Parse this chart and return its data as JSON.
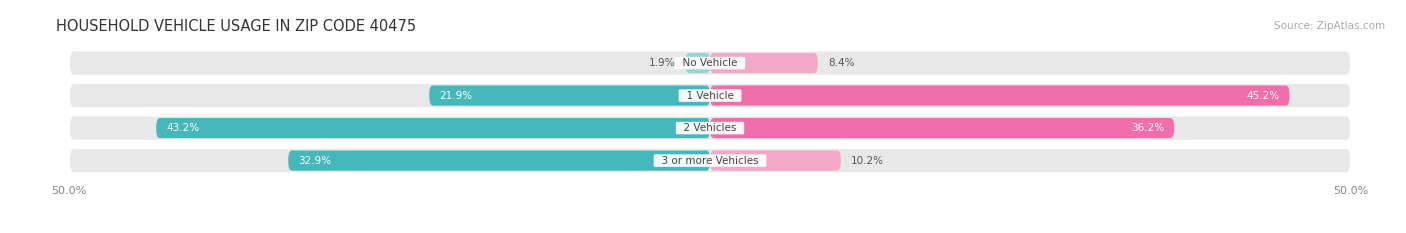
{
  "title": "HOUSEHOLD VEHICLE USAGE IN ZIP CODE 40475",
  "source": "Source: ZipAtlas.com",
  "categories": [
    "No Vehicle",
    "1 Vehicle",
    "2 Vehicles",
    "3 or more Vehicles"
  ],
  "owner_values": [
    1.9,
    21.9,
    43.2,
    32.9
  ],
  "renter_values": [
    8.4,
    45.2,
    36.2,
    10.2
  ],
  "owner_color": "#46b8bb",
  "renter_color": "#f06eaa",
  "owner_color_light": "#90d4d6",
  "renter_color_light": "#f4a8c8",
  "bar_bg_color": "#e8e8e8",
  "axis_limit": 50.0,
  "title_fontsize": 10.5,
  "source_fontsize": 7.5,
  "label_fontsize": 7.5,
  "tick_fontsize": 8,
  "legend_fontsize": 8,
  "background_color": "#ffffff",
  "bar_height": 0.62,
  "category_label_fontsize": 7.5,
  "owner_label_threshold": 10,
  "renter_label_threshold": 15
}
